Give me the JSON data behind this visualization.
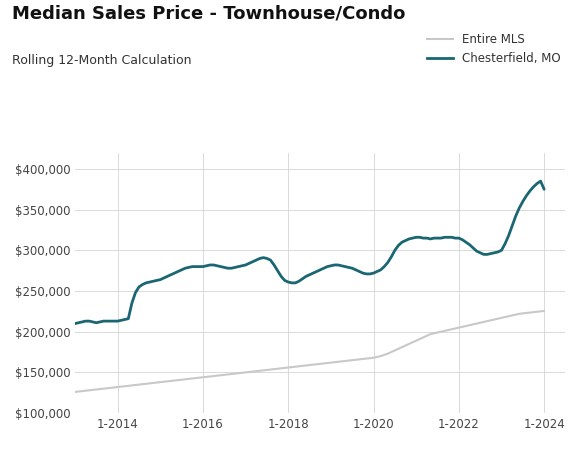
{
  "title": "Median Sales Price - Townhouse/Condo",
  "subtitle": "Rolling 12-Month Calculation",
  "title_fontsize": 13,
  "subtitle_fontsize": 9,
  "legend_entries": [
    "Entire MLS",
    "Chesterfield, MO"
  ],
  "mls_color": "#c8c8c8",
  "chesterfield_color": "#1a6672",
  "background_color": "#ffffff",
  "ylim": [
    100000,
    420000
  ],
  "yticks": [
    100000,
    150000,
    200000,
    250000,
    300000,
    350000,
    400000
  ],
  "xtick_positions": [
    2014,
    2016,
    2018,
    2020,
    2022,
    2024
  ],
  "xtick_labels": [
    "1-2014",
    "1-2016",
    "1-2018",
    "1-2020",
    "1-2022",
    "1-2024"
  ],
  "xlim": [
    2013.0,
    2024.5
  ],
  "mls_x": [
    2013.0,
    2013.083,
    2013.167,
    2013.25,
    2013.333,
    2013.417,
    2013.5,
    2013.583,
    2013.667,
    2013.75,
    2013.833,
    2013.917,
    2014.0,
    2014.083,
    2014.167,
    2014.25,
    2014.333,
    2014.417,
    2014.5,
    2014.583,
    2014.667,
    2014.75,
    2014.833,
    2014.917,
    2015.0,
    2015.083,
    2015.167,
    2015.25,
    2015.333,
    2015.417,
    2015.5,
    2015.583,
    2015.667,
    2015.75,
    2015.833,
    2015.917,
    2016.0,
    2016.083,
    2016.167,
    2016.25,
    2016.333,
    2016.417,
    2016.5,
    2016.583,
    2016.667,
    2016.75,
    2016.833,
    2016.917,
    2017.0,
    2017.083,
    2017.167,
    2017.25,
    2017.333,
    2017.417,
    2017.5,
    2017.583,
    2017.667,
    2017.75,
    2017.833,
    2017.917,
    2018.0,
    2018.083,
    2018.167,
    2018.25,
    2018.333,
    2018.417,
    2018.5,
    2018.583,
    2018.667,
    2018.75,
    2018.833,
    2018.917,
    2019.0,
    2019.083,
    2019.167,
    2019.25,
    2019.333,
    2019.417,
    2019.5,
    2019.583,
    2019.667,
    2019.75,
    2019.833,
    2019.917,
    2020.0,
    2020.083,
    2020.167,
    2020.25,
    2020.333,
    2020.417,
    2020.5,
    2020.583,
    2020.667,
    2020.75,
    2020.833,
    2020.917,
    2021.0,
    2021.083,
    2021.167,
    2021.25,
    2021.333,
    2021.417,
    2021.5,
    2021.583,
    2021.667,
    2021.75,
    2021.833,
    2021.917,
    2022.0,
    2022.083,
    2022.167,
    2022.25,
    2022.333,
    2022.417,
    2022.5,
    2022.583,
    2022.667,
    2022.75,
    2022.833,
    2022.917,
    2023.0,
    2023.083,
    2023.167,
    2023.25,
    2023.333,
    2023.417,
    2023.5,
    2023.583,
    2023.667,
    2023.75,
    2023.833,
    2023.917,
    2024.0
  ],
  "mls_y": [
    126000,
    126500,
    127000,
    127500,
    128000,
    128500,
    129000,
    129500,
    130000,
    130500,
    131000,
    131500,
    132000,
    132500,
    133000,
    133500,
    134000,
    134500,
    135000,
    135500,
    136000,
    136500,
    137000,
    137500,
    138000,
    138500,
    139000,
    139500,
    140000,
    140500,
    141000,
    141500,
    142000,
    142500,
    143000,
    143500,
    144000,
    144500,
    145000,
    145500,
    146000,
    146500,
    147000,
    147500,
    148000,
    148500,
    149000,
    149500,
    150000,
    150500,
    151000,
    151500,
    152000,
    152500,
    153000,
    153500,
    154000,
    154500,
    155000,
    155500,
    156000,
    156500,
    157000,
    157500,
    158000,
    158500,
    159000,
    159500,
    160000,
    160500,
    161000,
    161500,
    162000,
    162500,
    163000,
    163500,
    164000,
    164500,
    165000,
    165500,
    166000,
    166500,
    167000,
    167500,
    168000,
    169000,
    170000,
    171500,
    173000,
    175000,
    177000,
    179000,
    181000,
    183000,
    185000,
    187000,
    189000,
    191000,
    193000,
    195000,
    197000,
    198000,
    199000,
    200000,
    201000,
    202000,
    203000,
    204000,
    205000,
    206000,
    207000,
    208000,
    209000,
    210000,
    211000,
    212000,
    213000,
    214000,
    215000,
    216000,
    217000,
    218000,
    219000,
    220000,
    221000,
    222000,
    222500,
    223000,
    223500,
    224000,
    224500,
    225000,
    225500
  ],
  "ches_x": [
    2013.0,
    2013.083,
    2013.167,
    2013.25,
    2013.333,
    2013.417,
    2013.5,
    2013.583,
    2013.667,
    2013.75,
    2013.833,
    2013.917,
    2014.0,
    2014.083,
    2014.167,
    2014.25,
    2014.333,
    2014.417,
    2014.5,
    2014.583,
    2014.667,
    2014.75,
    2014.833,
    2014.917,
    2015.0,
    2015.083,
    2015.167,
    2015.25,
    2015.333,
    2015.417,
    2015.5,
    2015.583,
    2015.667,
    2015.75,
    2015.833,
    2015.917,
    2016.0,
    2016.083,
    2016.167,
    2016.25,
    2016.333,
    2016.417,
    2016.5,
    2016.583,
    2016.667,
    2016.75,
    2016.833,
    2016.917,
    2017.0,
    2017.083,
    2017.167,
    2017.25,
    2017.333,
    2017.417,
    2017.5,
    2017.583,
    2017.667,
    2017.75,
    2017.833,
    2017.917,
    2018.0,
    2018.083,
    2018.167,
    2018.25,
    2018.333,
    2018.417,
    2018.5,
    2018.583,
    2018.667,
    2018.75,
    2018.833,
    2018.917,
    2019.0,
    2019.083,
    2019.167,
    2019.25,
    2019.333,
    2019.417,
    2019.5,
    2019.583,
    2019.667,
    2019.75,
    2019.833,
    2019.917,
    2020.0,
    2020.083,
    2020.167,
    2020.25,
    2020.333,
    2020.417,
    2020.5,
    2020.583,
    2020.667,
    2020.75,
    2020.833,
    2020.917,
    2021.0,
    2021.083,
    2021.167,
    2021.25,
    2021.333,
    2021.417,
    2021.5,
    2021.583,
    2021.667,
    2021.75,
    2021.833,
    2021.917,
    2022.0,
    2022.083,
    2022.167,
    2022.25,
    2022.333,
    2022.417,
    2022.5,
    2022.583,
    2022.667,
    2022.75,
    2022.833,
    2022.917,
    2023.0,
    2023.083,
    2023.167,
    2023.25,
    2023.333,
    2023.417,
    2023.5,
    2023.583,
    2023.667,
    2023.75,
    2023.833,
    2023.917,
    2024.0
  ],
  "ches_y": [
    210000,
    211000,
    212000,
    213000,
    213000,
    212000,
    211000,
    212000,
    213000,
    213000,
    213000,
    213000,
    213000,
    214000,
    215000,
    216000,
    235000,
    248000,
    255000,
    258000,
    260000,
    261000,
    262000,
    263000,
    264000,
    266000,
    268000,
    270000,
    272000,
    274000,
    276000,
    278000,
    279000,
    280000,
    280000,
    280000,
    280000,
    281000,
    282000,
    282000,
    281000,
    280000,
    279000,
    278000,
    278000,
    279000,
    280000,
    281000,
    282000,
    284000,
    286000,
    288000,
    290000,
    291000,
    290000,
    288000,
    282000,
    275000,
    268000,
    263000,
    261000,
    260000,
    260000,
    262000,
    265000,
    268000,
    270000,
    272000,
    274000,
    276000,
    278000,
    280000,
    281000,
    282000,
    282000,
    281000,
    280000,
    279000,
    278000,
    276000,
    274000,
    272000,
    271000,
    271000,
    272000,
    274000,
    276000,
    280000,
    285000,
    292000,
    300000,
    306000,
    310000,
    312000,
    314000,
    315000,
    316000,
    316000,
    315000,
    315000,
    314000,
    315000,
    315000,
    315000,
    316000,
    316000,
    316000,
    315000,
    315000,
    313000,
    310000,
    307000,
    303000,
    299000,
    297000,
    295000,
    295000,
    296000,
    297000,
    298000,
    300000,
    308000,
    318000,
    330000,
    342000,
    352000,
    360000,
    367000,
    373000,
    378000,
    382000,
    385000,
    375000
  ]
}
